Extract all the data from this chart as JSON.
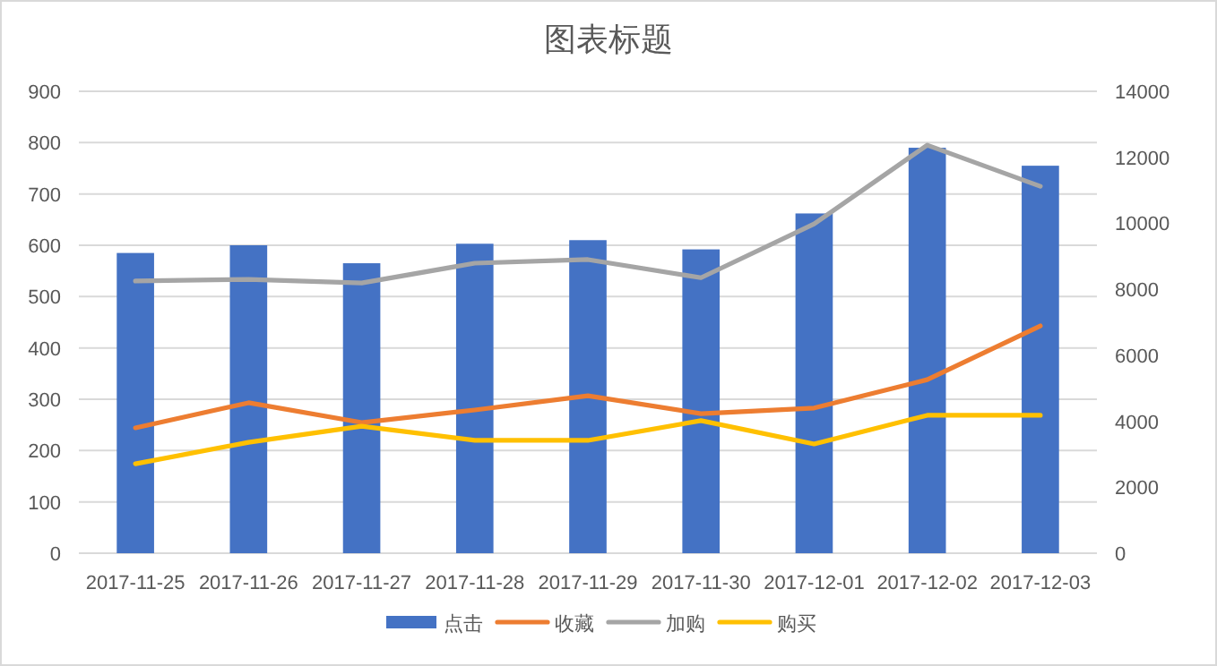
{
  "chart_data": {
    "type": "bar",
    "title": "图表标题",
    "categories": [
      "2017-11-25",
      "2017-11-26",
      "2017-11-27",
      "2017-11-28",
      "2017-11-29",
      "2017-11-30",
      "2017-12-01",
      "2017-12-02",
      "2017-12-03"
    ],
    "series": [
      {
        "name": "点击",
        "color": "#4472c4",
        "values": [
          585,
          600,
          565,
          603,
          610,
          592,
          662,
          790,
          755
        ]
      },
      {
        "name": "收藏",
        "type": "line",
        "axis": "y2",
        "color": "#ed7d31",
        "values": [
          3800,
          4560,
          3960,
          4340,
          4770,
          4230,
          4400,
          5260,
          6890
        ]
      },
      {
        "name": "加购",
        "type": "line",
        "axis": "y2",
        "color": "#a5a5a5",
        "values": [
          8250,
          8300,
          8190,
          8790,
          8900,
          8350,
          9980,
          12370,
          11120
        ]
      },
      {
        "name": "购买",
        "type": "line",
        "axis": "y2",
        "color": "#ffc000",
        "values": [
          2710,
          3360,
          3850,
          3420,
          3420,
          4020,
          3310,
          4180,
          4180
        ]
      }
    ],
    "ylim": [
      0,
      900
    ],
    "yticks": [
      0,
      100,
      200,
      300,
      400,
      500,
      600,
      700,
      800,
      900
    ],
    "y2lim": [
      0,
      14000
    ],
    "y2ticks": [
      0,
      2000,
      4000,
      6000,
      8000,
      10000,
      12000,
      14000
    ],
    "grid": "y",
    "legend": "bottom"
  }
}
